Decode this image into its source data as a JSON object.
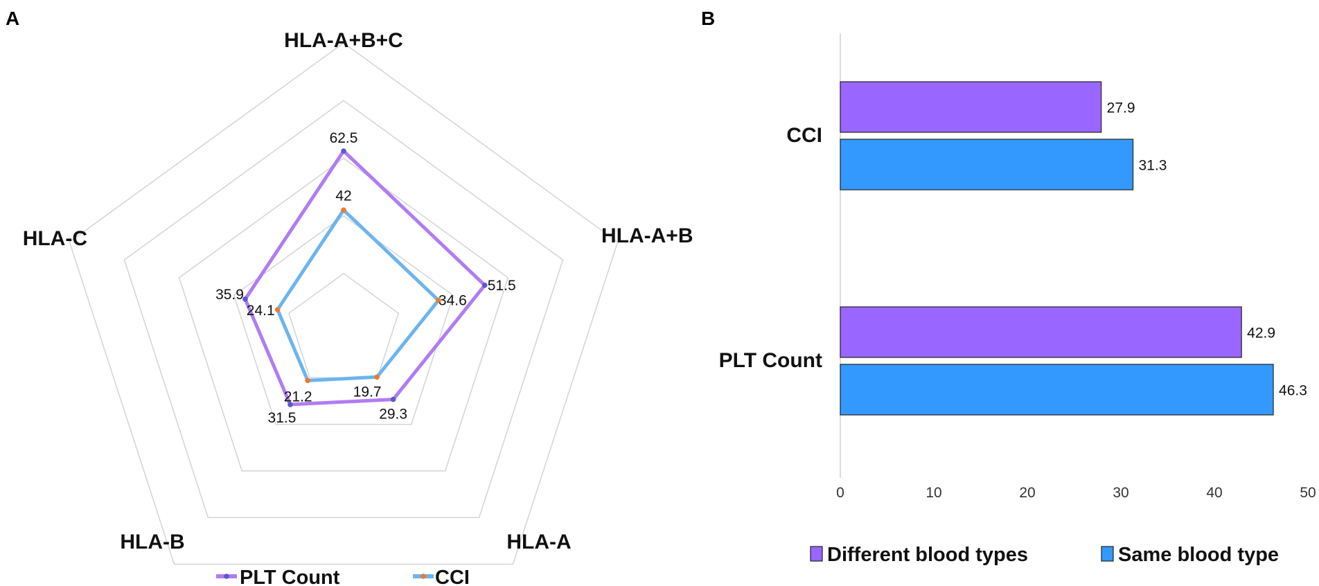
{
  "colors": {
    "plt": "#b07cf2",
    "plt_marker": "#5a5ac8",
    "cci": "#6cb5ee",
    "cci_marker": "#ee7a2f",
    "different": "#9966ff",
    "same": "#3399ff",
    "grid": "#d4d4d4"
  },
  "chart_data": [
    {
      "panel": "A",
      "type": "radar",
      "axes": [
        "HLA-A+B+C",
        "HLA-A+B",
        "HLA-A",
        "HLA-B",
        "HLA-C"
      ],
      "rmax": 100,
      "rings": 5,
      "series": [
        {
          "name": "PLT Count",
          "values": [
            62.5,
            51.5,
            29.3,
            31.5,
            35.9
          ],
          "labels": [
            "62.5",
            "51.5",
            "29.3",
            "31.5",
            "35.9"
          ]
        },
        {
          "name": "CCI",
          "values": [
            42,
            34.6,
            19.7,
            21.2,
            24.1
          ],
          "labels": [
            "42",
            "34.6",
            "19.7",
            "21.2",
            "24.1"
          ]
        }
      ],
      "legend": [
        "PLT Count",
        "CCI"
      ]
    },
    {
      "panel": "B",
      "type": "bar",
      "orientation": "horizontal",
      "categories": [
        "CCI",
        "PLT Count"
      ],
      "series": [
        {
          "name": "Different blood types",
          "values": [
            27.9,
            42.9
          ],
          "labels": [
            "27.9",
            "42.9"
          ]
        },
        {
          "name": "Same blood type",
          "values": [
            31.3,
            46.3
          ],
          "labels": [
            "31.3",
            "46.3"
          ]
        }
      ],
      "xlim": [
        0,
        50
      ],
      "xticks": [
        "0",
        "10",
        "20",
        "30",
        "40",
        "50"
      ],
      "legend": [
        "Different blood types",
        "Same blood type"
      ]
    }
  ]
}
